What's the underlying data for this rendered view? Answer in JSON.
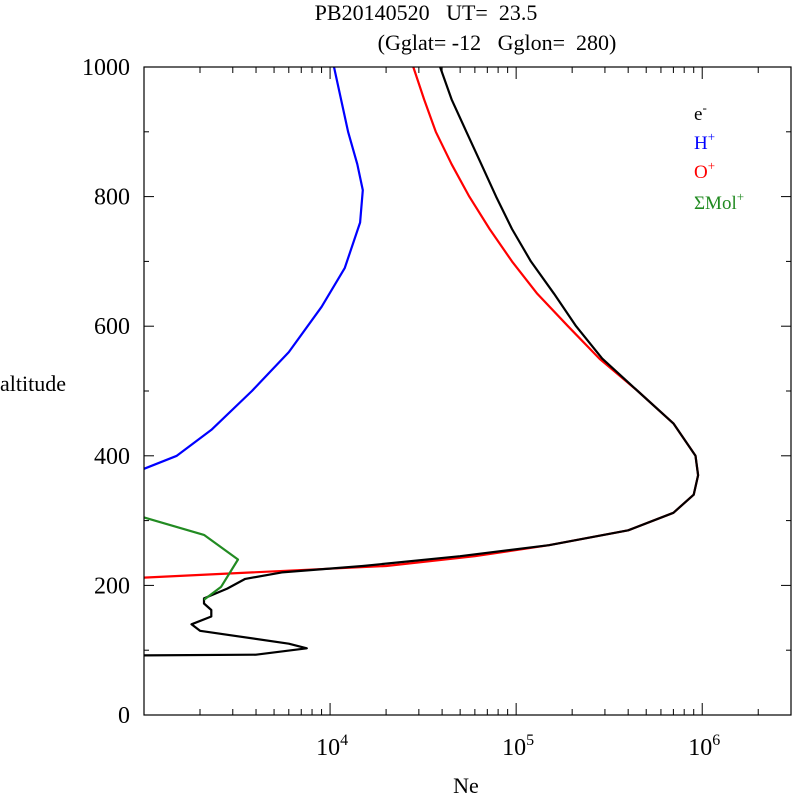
{
  "chart_data": {
    "type": "line",
    "title_line1": "PB20140520   UT=  23.5",
    "title_line2": "(Gglat= -12   Gglon=  280)",
    "xlabel": "Ne",
    "ylabel": "altitude",
    "x_scale": "log",
    "xlim": [
      1000,
      3000000
    ],
    "ylim": [
      0,
      1000
    ],
    "y_ticks": [
      0,
      200,
      400,
      600,
      800,
      1000
    ],
    "y_tick_labels": [
      "0",
      "200",
      "400",
      "600",
      "800",
      "1000"
    ],
    "x_ticks": [
      {
        "value": 10000,
        "base": "10",
        "exp": "4"
      },
      {
        "value": 100000,
        "base": "10",
        "exp": "5"
      },
      {
        "value": 1000000,
        "base": "10",
        "exp": "6"
      }
    ],
    "legend_position": "top-right",
    "series": [
      {
        "name": "O+",
        "label_base": "O",
        "label_sup": "+",
        "color": "#ff0000",
        "points": [
          [
            1000,
            212
          ],
          [
            20000,
            230
          ],
          [
            60000,
            245
          ],
          [
            150000,
            262
          ],
          [
            400000,
            285
          ],
          [
            700000,
            312
          ],
          [
            900000,
            340
          ],
          [
            950000,
            370
          ],
          [
            920000,
            400
          ],
          [
            700000,
            450
          ],
          [
            450000,
            500
          ],
          [
            280000,
            550
          ],
          [
            190000,
            600
          ],
          [
            130000,
            650
          ],
          [
            95000,
            700
          ],
          [
            72000,
            750
          ],
          [
            56000,
            800
          ],
          [
            45000,
            850
          ],
          [
            37000,
            900
          ],
          [
            32000,
            950
          ],
          [
            28000,
            1000
          ]
        ]
      },
      {
        "name": "e-",
        "label_base": "e",
        "label_sup": "-",
        "color": "#000000",
        "points": [
          [
            1000,
            92
          ],
          [
            4000,
            93
          ],
          [
            7500,
            103
          ],
          [
            6000,
            110
          ],
          [
            2000,
            130
          ],
          [
            1800,
            140
          ],
          [
            2300,
            152
          ],
          [
            2300,
            162
          ],
          [
            2100,
            172
          ],
          [
            2100,
            180
          ],
          [
            2800,
            195
          ],
          [
            3500,
            210
          ],
          [
            5500,
            220
          ],
          [
            15000,
            230
          ],
          [
            50000,
            245
          ],
          [
            150000,
            262
          ],
          [
            400000,
            285
          ],
          [
            700000,
            312
          ],
          [
            900000,
            340
          ],
          [
            950000,
            370
          ],
          [
            920000,
            400
          ],
          [
            700000,
            450
          ],
          [
            450000,
            500
          ],
          [
            290000,
            550
          ],
          [
            210000,
            600
          ],
          [
            160000,
            650
          ],
          [
            120000,
            700
          ],
          [
            95000,
            750
          ],
          [
            78000,
            800
          ],
          [
            65000,
            850
          ],
          [
            54000,
            900
          ],
          [
            45000,
            950
          ],
          [
            39000,
            1000
          ]
        ]
      },
      {
        "name": "H+",
        "label_base": "H",
        "label_sup": "+",
        "color": "#0000ff",
        "points": [
          [
            1000,
            380
          ],
          [
            1500,
            400
          ],
          [
            2300,
            440
          ],
          [
            3800,
            500
          ],
          [
            6000,
            560
          ],
          [
            9000,
            630
          ],
          [
            12000,
            690
          ],
          [
            14500,
            760
          ],
          [
            15000,
            810
          ],
          [
            14000,
            850
          ],
          [
            12500,
            900
          ],
          [
            10500,
            1000
          ]
        ]
      },
      {
        "name": "ΣMol+",
        "label_base": "ΣMol",
        "label_sup": "+",
        "color": "#228b22",
        "points": [
          [
            1000,
            305
          ],
          [
            2100,
            278
          ],
          [
            3200,
            240
          ],
          [
            2600,
            198
          ],
          [
            2100,
            178
          ]
        ]
      }
    ]
  }
}
